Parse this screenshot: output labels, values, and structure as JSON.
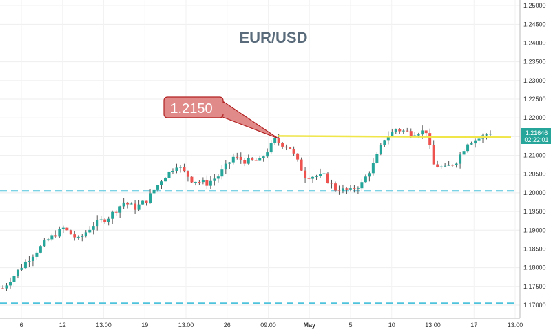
{
  "chart_data": {
    "type": "candlestick",
    "title": "EUR/USD",
    "ylim": [
      1.1665,
      1.2515
    ],
    "y_ticks": [
      "1.25000",
      "1.24500",
      "1.24000",
      "1.23500",
      "1.23000",
      "1.22500",
      "1.22000",
      "1.21500",
      "1.21000",
      "1.20500",
      "1.20000",
      "1.19500",
      "1.19000",
      "1.18500",
      "1.18000",
      "1.17500",
      "1.17000"
    ],
    "x_ticks": [
      {
        "label": "6",
        "bold": false
      },
      {
        "label": "12",
        "bold": false
      },
      {
        "label": "13:00",
        "bold": false
      },
      {
        "label": "19",
        "bold": false
      },
      {
        "label": "13:00",
        "bold": false
      },
      {
        "label": "26",
        "bold": false
      },
      {
        "label": "09:00",
        "bold": false
      },
      {
        "label": "May",
        "bold": true
      },
      {
        "label": "5",
        "bold": false
      },
      {
        "label": "10",
        "bold": false
      },
      {
        "label": "13:00",
        "bold": false
      },
      {
        "label": "17",
        "bold": false
      },
      {
        "label": "13:00",
        "bold": false
      }
    ],
    "grid": true,
    "resistance_level": 1.215,
    "support_levels": [
      1.2005,
      1.1705
    ],
    "annotation": "1.2150",
    "current_price": "1.21646",
    "countdown": "02:22:01",
    "colors": {
      "up": "#26a69a",
      "down": "#ef5350",
      "wick": "#555555",
      "resistance": "#f0e64a",
      "support": "#4fc3dc",
      "callout_fill": "#e08a8a",
      "callout_stroke": "#b22222",
      "price_label": "#26a69a",
      "title": "#5a6c7c"
    },
    "price_path": [
      [
        0,
        1.1745
      ],
      [
        6,
        1.1815
      ],
      [
        12,
        1.1875
      ],
      [
        16,
        1.1905
      ],
      [
        20,
        1.1875
      ],
      [
        24,
        1.1915
      ],
      [
        28,
        1.1935
      ],
      [
        32,
        1.1975
      ],
      [
        35,
        1.196
      ],
      [
        38,
        1.198
      ],
      [
        42,
        1.2035
      ],
      [
        46,
        1.2075
      ],
      [
        50,
        1.2035
      ],
      [
        54,
        1.2025
      ],
      [
        57,
        1.2045
      ],
      [
        61,
        1.2095
      ],
      [
        64,
        1.2085
      ],
      [
        68,
        1.2085
      ],
      [
        72,
        1.214
      ],
      [
        76,
        1.212
      ],
      [
        80,
        1.2045
      ],
      [
        85,
        1.2045
      ],
      [
        88,
        1.201
      ],
      [
        92,
        1.2005
      ],
      [
        95,
        1.2025
      ],
      [
        98,
        1.2075
      ],
      [
        101,
        1.2145
      ],
      [
        104,
        1.217
      ],
      [
        108,
        1.216
      ],
      [
        112,
        1.2165
      ],
      [
        114,
        1.2075
      ],
      [
        117,
        1.2065
      ],
      [
        120,
        1.2085
      ],
      [
        123,
        1.2135
      ],
      [
        126,
        1.2145
      ],
      [
        129,
        1.2162
      ]
    ]
  }
}
